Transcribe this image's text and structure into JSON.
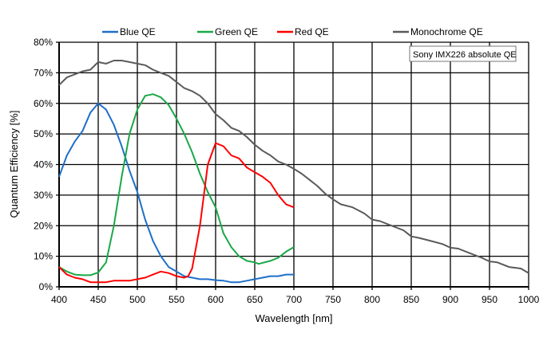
{
  "chart_data": {
    "type": "line",
    "title": "",
    "annotation": "Sony IMX226 absolute QE",
    "xlabel": "Wavelength [nm]",
    "ylabel": "Quantum Efficiency [%]",
    "xlim": [
      400,
      1000
    ],
    "ylim": [
      0,
      80
    ],
    "xticks": [
      400,
      450,
      500,
      550,
      600,
      650,
      700,
      750,
      800,
      850,
      900,
      950,
      1000
    ],
    "yticks": [
      "0%",
      "10%",
      "20%",
      "30%",
      "40%",
      "50%",
      "60%",
      "70%",
      "80%"
    ],
    "grid": true,
    "legend_position": "top",
    "series": [
      {
        "name": "Blue QE",
        "color": "#1f6fc8",
        "x": [
          400,
          410,
          420,
          430,
          440,
          445,
          450,
          460,
          470,
          480,
          490,
          500,
          510,
          520,
          530,
          540,
          550,
          560,
          570,
          580,
          590,
          600,
          610,
          620,
          630,
          640,
          650,
          660,
          670,
          680,
          690,
          700
        ],
        "y": [
          36,
          43,
          47.5,
          51,
          57,
          58.5,
          60,
          58,
          53,
          46,
          38,
          31,
          22,
          15,
          10,
          6.5,
          5,
          3.5,
          3,
          2.5,
          2.5,
          2.2,
          2,
          1.5,
          1.5,
          2,
          2.5,
          3,
          3.5,
          3.5,
          4,
          4
        ]
      },
      {
        "name": "Green QE",
        "color": "#1aa847",
        "x": [
          400,
          410,
          420,
          430,
          440,
          450,
          460,
          470,
          480,
          490,
          500,
          510,
          520,
          530,
          540,
          550,
          560,
          570,
          580,
          590,
          600,
          610,
          620,
          630,
          640,
          650,
          655,
          670,
          680,
          690,
          700
        ],
        "y": [
          6.5,
          5,
          4,
          3.8,
          3.8,
          4.7,
          8,
          20,
          36,
          50,
          58,
          62.5,
          63,
          62,
          59.5,
          55,
          50,
          44,
          37,
          31,
          26,
          17.5,
          13,
          10,
          8.5,
          8,
          7.5,
          8.5,
          9.5,
          11.5,
          13
        ]
      },
      {
        "name": "Red QE",
        "color": "#ff0000",
        "x": [
          400,
          410,
          420,
          430,
          440,
          450,
          460,
          470,
          480,
          490,
          500,
          510,
          520,
          530,
          540,
          550,
          560,
          565,
          570,
          580,
          590,
          600,
          610,
          620,
          630,
          640,
          650,
          660,
          670,
          680,
          690,
          700
        ],
        "y": [
          6.5,
          4,
          3,
          2.5,
          1.5,
          1.5,
          1.5,
          2,
          2,
          2,
          2.5,
          3,
          4,
          5,
          4.5,
          3.5,
          3,
          3.5,
          6,
          20,
          40,
          47,
          46,
          43,
          42,
          39,
          37.5,
          36,
          34,
          30,
          27,
          26
        ]
      },
      {
        "name": "Monochrome QE",
        "color": "#5a5a5a",
        "x": [
          400,
          410,
          420,
          430,
          440,
          450,
          460,
          470,
          480,
          490,
          500,
          510,
          520,
          530,
          540,
          550,
          560,
          570,
          580,
          590,
          600,
          610,
          620,
          630,
          640,
          650,
          660,
          670,
          680,
          690,
          700,
          710,
          720,
          730,
          740,
          750,
          760,
          775,
          790,
          800,
          810,
          825,
          840,
          850,
          860,
          875,
          890,
          900,
          910,
          925,
          940,
          950,
          960,
          975,
          990,
          1000
        ],
        "y": [
          66,
          68.5,
          69.5,
          70.5,
          71,
          73.5,
          73,
          74,
          74,
          73.5,
          73,
          72.5,
          71,
          70,
          69,
          67,
          65,
          64,
          62.5,
          60,
          56.5,
          54.5,
          52,
          51,
          49,
          46.5,
          44.5,
          43,
          41,
          40,
          38.6,
          37,
          35,
          33,
          30.5,
          28.6,
          27,
          26,
          24,
          22,
          21.5,
          20,
          18.5,
          16.5,
          16,
          15,
          14,
          12.8,
          12.5,
          11,
          9.5,
          8.3,
          8,
          6.5,
          6,
          4.5
        ]
      }
    ]
  }
}
